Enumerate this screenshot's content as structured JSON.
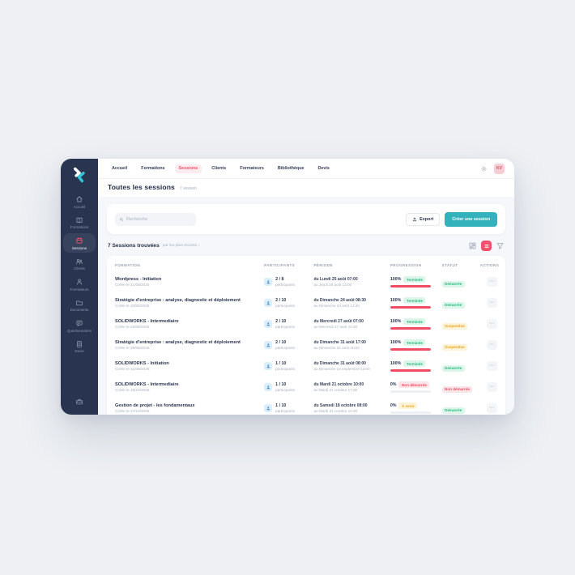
{
  "topnav": {
    "items": [
      {
        "label": "Accueil",
        "active": false
      },
      {
        "label": "Formations",
        "active": false
      },
      {
        "label": "Sessions",
        "active": true
      },
      {
        "label": "Clients",
        "active": false
      },
      {
        "label": "Formateurs",
        "active": false
      },
      {
        "label": "Bibliothèque",
        "active": false
      },
      {
        "label": "Devis",
        "active": false
      }
    ],
    "avatar_initials": "KV"
  },
  "sidebar": {
    "items": [
      {
        "label": "Accueil",
        "active": false
      },
      {
        "label": "Formations",
        "active": false
      },
      {
        "label": "Sessions",
        "active": true
      },
      {
        "label": "Clients",
        "active": false
      },
      {
        "label": "Formateurs",
        "active": false
      },
      {
        "label": "Documents",
        "active": false
      },
      {
        "label": "Questionnaires",
        "active": false
      },
      {
        "label": "Devis",
        "active": false
      }
    ]
  },
  "page": {
    "title": "Toutes les sessions",
    "count": "7 session"
  },
  "toolbar": {
    "search_placeholder": "Recherche",
    "export_label": "Export",
    "create_label": "Créer une session"
  },
  "results": {
    "title": "7 Sessions trouvées",
    "sort": "par les plus récents ↓"
  },
  "table": {
    "headers": [
      "FORMATION",
      "PARTICIPANTS",
      "PÉRIODE",
      "PROGRESSION",
      "STATUT",
      "ACTIONS"
    ],
    "actions_dots": "⋯",
    "rows": [
      {
        "title": "Wordpress - Initiation",
        "created": "Créée le 21/08/2025",
        "participants": "2 / 8",
        "participants_label": "participants",
        "period_from": "du Lundi 25 août 07:00",
        "period_to": "au Jeudi 28 août 12:00",
        "progress_pct": "100%",
        "progress_value": 100,
        "progress_badge": "Terminée",
        "progress_badge_style": "green",
        "status": "Démarrée",
        "status_style": "green"
      },
      {
        "title": "Stratégie d'entreprise : analyse, diagnostic et déploiement",
        "created": "Créée le 22/08/2025",
        "participants": "2 / 10",
        "participants_label": "participants",
        "period_from": "du Dimanche 24 août 08:30",
        "period_to": "au Dimanche 24 août 13:30",
        "progress_pct": "100%",
        "progress_value": 100,
        "progress_badge": "Terminée",
        "progress_badge_style": "green",
        "status": "Démarrée",
        "status_style": "green"
      },
      {
        "title": "SOLIDWORKS - Intermediaire",
        "created": "Créée le 25/08/2025",
        "participants": "2 / 10",
        "participants_label": "participants",
        "period_from": "du Mercredi 27 août 07:00",
        "period_to": "au Mercredi 27 août 12:00",
        "progress_pct": "100%",
        "progress_value": 100,
        "progress_badge": "Terminée",
        "progress_badge_style": "green",
        "status": "Suspendue",
        "status_style": "orange"
      },
      {
        "title": "Stratégie d'entreprise : analyse, diagnostic et déploiement",
        "created": "Créée le 28/08/2025",
        "participants": "2 / 10",
        "participants_label": "participants",
        "period_from": "du Dimanche 31 août 17:00",
        "period_to": "au Dimanche 31 août 20:00",
        "progress_pct": "100%",
        "progress_value": 100,
        "progress_badge": "Terminée",
        "progress_badge_style": "green",
        "status": "Suspendue",
        "status_style": "orange"
      },
      {
        "title": "SOLIDWORKS - Initiation",
        "created": "Créée le 31/08/2025",
        "participants": "1 / 10",
        "participants_label": "participants",
        "period_from": "du Dimanche 31 août 08:00",
        "period_to": "au Dimanche 14 septembre 13:00",
        "progress_pct": "100%",
        "progress_value": 100,
        "progress_badge": "Terminée",
        "progress_badge_style": "green",
        "status": "Démarrée",
        "status_style": "green"
      },
      {
        "title": "SOLIDWORKS - Intermediaire",
        "created": "Créée le 18/10/2025",
        "participants": "1 / 10",
        "participants_label": "participants",
        "period_from": "du Mardi 21 octobre 10:00",
        "period_to": "au Mardi 21 octobre 17:00",
        "progress_pct": "0%",
        "progress_value": 0,
        "progress_badge": "Non démarrée",
        "progress_badge_style": "red",
        "status": "Non démarrée",
        "status_style": "red"
      },
      {
        "title": "Gestion de projet - les fondamentaux",
        "created": "Créée le 17/10/2025",
        "participants": "1 / 10",
        "participants_label": "participants",
        "period_from": "du Samedi 18 octobre 08:00",
        "period_to": "au Mardi 21 octobre 12:00",
        "progress_pct": "0%",
        "progress_value": 0,
        "progress_badge": "À venir",
        "progress_badge_style": "orange",
        "status": "Démarrée",
        "status_style": "green"
      }
    ]
  },
  "colors": {
    "accent": "#f0516c",
    "teal": "#34b2bb",
    "sidebar": "#283450",
    "badge_green": "#27bd83",
    "badge_orange": "#e8a722",
    "badge_red": "#ee4d64",
    "progress_bar": "#ee4d64"
  }
}
